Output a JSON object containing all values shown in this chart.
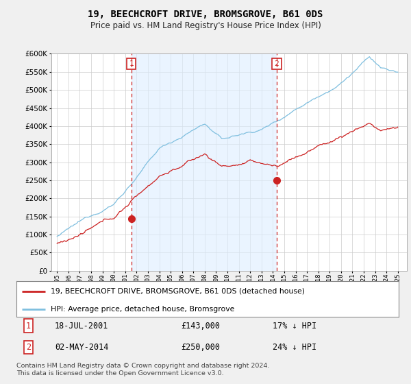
{
  "title": "19, BEECHCROFT DRIVE, BROMSGROVE, B61 0DS",
  "subtitle": "Price paid vs. HM Land Registry's House Price Index (HPI)",
  "ylim": [
    0,
    600000
  ],
  "ytick_values": [
    0,
    50000,
    100000,
    150000,
    200000,
    250000,
    300000,
    350000,
    400000,
    450000,
    500000,
    550000,
    600000
  ],
  "hpi_color": "#7fbfdf",
  "price_color": "#cc2222",
  "shade_color": "#ddeeff",
  "dashed_line_color": "#cc2222",
  "bg_color": "#f0f0f0",
  "plot_bg_color": "#ffffff",
  "legend_label_price": "19, BEECHCROFT DRIVE, BROMSGROVE, B61 0DS (detached house)",
  "legend_label_hpi": "HPI: Average price, detached house, Bromsgrove",
  "sale1_label": "1",
  "sale1_date": "18-JUL-2001",
  "sale1_price": "£143,000",
  "sale1_note": "17% ↓ HPI",
  "sale1_x": 2001.54,
  "sale1_y": 143000,
  "sale2_label": "2",
  "sale2_date": "02-MAY-2014",
  "sale2_price": "£250,000",
  "sale2_note": "24% ↓ HPI",
  "sale2_x": 2014.33,
  "sale2_y": 250000,
  "vline1_x": 2001.54,
  "vline2_x": 2014.33,
  "footer": "Contains HM Land Registry data © Crown copyright and database right 2024.\nThis data is licensed under the Open Government Licence v3.0.",
  "xlim": [
    1994.5,
    2025.8
  ],
  "xtick_years": [
    1995,
    1996,
    1997,
    1998,
    1999,
    2000,
    2001,
    2002,
    2003,
    2004,
    2005,
    2006,
    2007,
    2008,
    2009,
    2010,
    2011,
    2012,
    2013,
    2014,
    2015,
    2016,
    2017,
    2018,
    2019,
    2020,
    2021,
    2022,
    2023,
    2024,
    2025
  ]
}
